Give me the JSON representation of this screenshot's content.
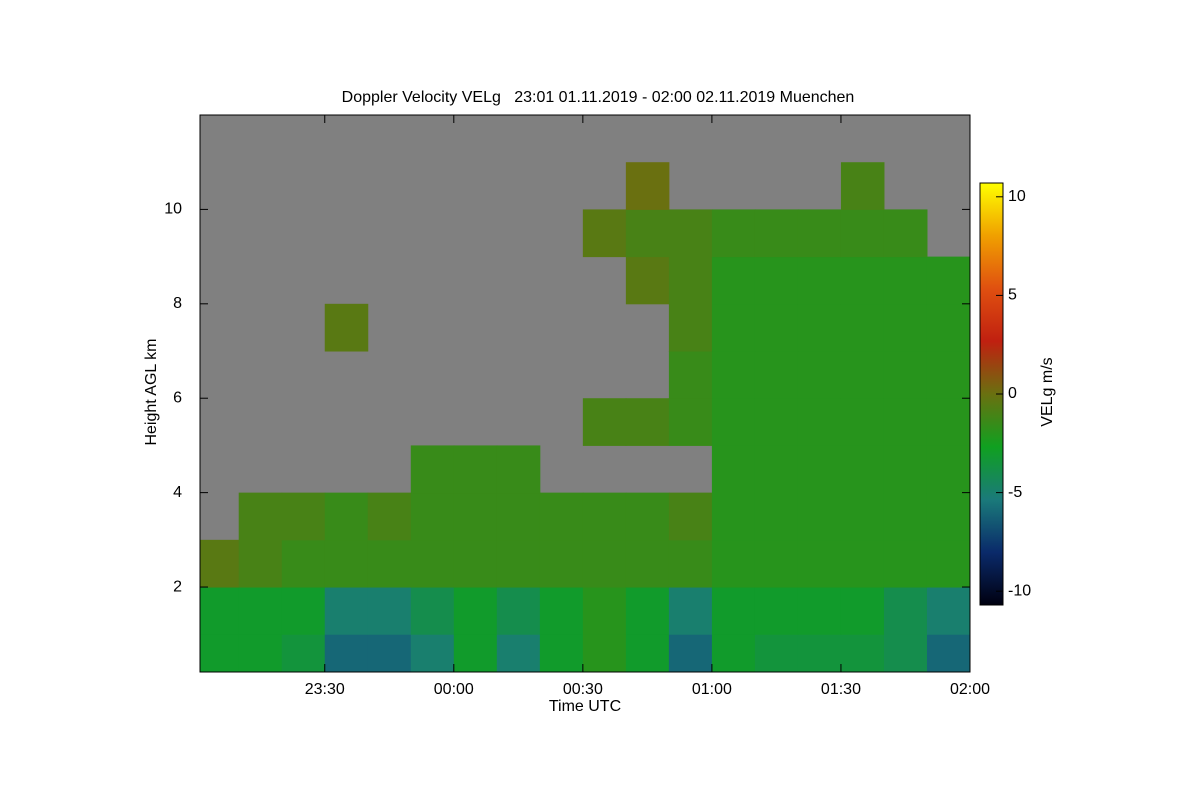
{
  "chart_data": {
    "type": "heatmap",
    "title": "Doppler Velocity VELg   23:01 01.11.2019 - 02:00 02.11.2019 Muenchen",
    "xlabel": "Time UTC",
    "ylabel": "Height AGL km",
    "colorbar_label": "VELg m/s",
    "xlim": [
      1381,
      1560
    ],
    "ylim": [
      0.2,
      12
    ],
    "xticks": [
      {
        "value": 1410,
        "label": "23:30"
      },
      {
        "value": 1440,
        "label": "00:00"
      },
      {
        "value": 1470,
        "label": "00:30"
      },
      {
        "value": 1500,
        "label": "01:00"
      },
      {
        "value": 1530,
        "label": "01:30"
      },
      {
        "value": 1560,
        "label": "02:00"
      }
    ],
    "yticks": [
      2,
      4,
      6,
      8,
      10
    ],
    "clim": [
      -10.7,
      10.7
    ],
    "cticks": [
      10,
      5,
      0,
      -5,
      -10
    ],
    "colormap": [
      "#000010",
      "#0a2a6a",
      "#1a7a7a",
      "#10a020",
      "#6a7010",
      "#c02010",
      "#e05010",
      "#f0a000",
      "#ffff00"
    ],
    "no_data_color": "#808080",
    "x_bins": [
      1381,
      1390,
      1400,
      1410,
      1420,
      1430,
      1440,
      1450,
      1460,
      1470,
      1480,
      1490,
      1500,
      1510,
      1520,
      1530,
      1540,
      1550,
      1560
    ],
    "y_bins": [
      0.2,
      1,
      2,
      3,
      4,
      5,
      6,
      7,
      8,
      9,
      10,
      11,
      12
    ],
    "values": [
      [
        -3,
        -3,
        -3.5,
        -6,
        -6,
        -5,
        -3,
        -5,
        -3,
        -2,
        -3,
        -6,
        -3,
        -3.5,
        -3.5,
        -3.5,
        -4,
        -6
      ],
      [
        -3,
        -3,
        -3,
        -5,
        -5,
        -4,
        -3,
        -4,
        -3,
        -2,
        -3,
        -5,
        -3,
        -3,
        -3,
        -3,
        -4,
        -5
      ],
      [
        -0.5,
        -1,
        -1.5,
        -1.5,
        -1.5,
        -1.5,
        -1.5,
        -1.5,
        -1.5,
        -1.5,
        -1.5,
        -1.5,
        -2,
        -2,
        -2,
        -2,
        -2,
        -2
      ],
      [
        null,
        -1,
        -1,
        -1.5,
        -1,
        -1.5,
        -1.5,
        -1.5,
        -1.5,
        -1.5,
        -1.5,
        -1,
        -2,
        -2,
        -2,
        -2,
        -2,
        -2
      ],
      [
        null,
        null,
        null,
        null,
        null,
        -1.5,
        -1.5,
        -1.5,
        null,
        null,
        null,
        null,
        -2,
        -2,
        -2,
        -2,
        -2,
        -2
      ],
      [
        null,
        null,
        null,
        null,
        null,
        null,
        null,
        null,
        null,
        -1,
        -1,
        -1.5,
        -2,
        -2,
        -2,
        -2,
        -2,
        -2
      ],
      [
        null,
        null,
        null,
        null,
        null,
        null,
        null,
        null,
        null,
        null,
        null,
        -1.5,
        -2,
        -2,
        -2,
        -2,
        -2,
        -2
      ],
      [
        null,
        null,
        null,
        -0.5,
        null,
        null,
        null,
        null,
        null,
        null,
        null,
        -1,
        -2,
        -2,
        -2,
        -2,
        -2,
        -2
      ],
      [
        null,
        null,
        null,
        null,
        null,
        null,
        null,
        null,
        null,
        null,
        -0.5,
        -1,
        -2,
        -2,
        -2,
        -2,
        -2,
        -2
      ],
      [
        null,
        null,
        null,
        null,
        null,
        null,
        null,
        null,
        null,
        -0.5,
        -1,
        -1,
        -1.5,
        -1.5,
        -1.5,
        -1.5,
        -1.5,
        null
      ],
      [
        null,
        null,
        null,
        null,
        null,
        null,
        null,
        null,
        null,
        null,
        0,
        null,
        null,
        null,
        null,
        -1,
        null,
        null
      ],
      [
        null,
        null,
        null,
        null,
        null,
        null,
        null,
        null,
        null,
        null,
        null,
        null,
        null,
        null,
        null,
        null,
        null,
        null
      ]
    ]
  }
}
